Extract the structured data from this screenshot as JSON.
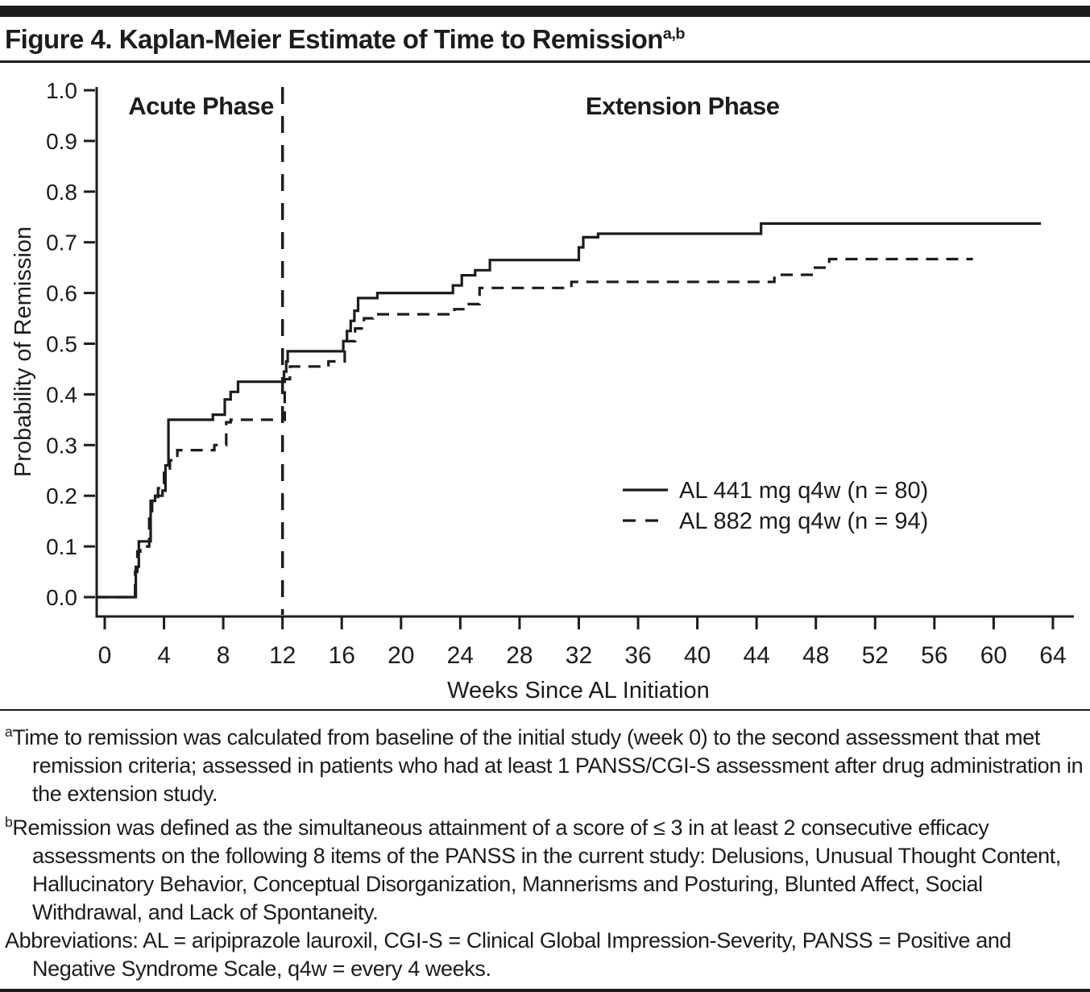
{
  "page": {
    "title": "Figure 4. Kaplan-Meier Estimate of Time to Remission",
    "title_superscript": "a,b"
  },
  "chart_data": {
    "type": "line",
    "subtype": "kaplan-meier-step",
    "title": "Figure 4. Kaplan-Meier Estimate of Time to Remission",
    "xlabel": "Weeks Since AL Initiation",
    "ylabel": "Probability of Remission",
    "xlim": [
      0,
      64
    ],
    "ylim": [
      0.0,
      1.0
    ],
    "x_ticks": [
      0,
      4,
      8,
      12,
      16,
      20,
      24,
      28,
      32,
      36,
      40,
      44,
      48,
      52,
      56,
      60,
      64
    ],
    "y_ticks": [
      0.0,
      0.1,
      0.2,
      0.3,
      0.4,
      0.5,
      0.6,
      0.7,
      0.8,
      0.9,
      1.0
    ],
    "grid": false,
    "line_color": "#1c1c1c",
    "phase_divider_week": 12,
    "phase_labels": [
      {
        "text": "Acute Phase",
        "week": 6.5,
        "prob": 0.952
      },
      {
        "text": "Extension Phase",
        "week": 39,
        "prob": 0.952
      }
    ],
    "legend": {
      "position": "center-right",
      "entries": [
        {
          "label": "AL 441 mg q4w (n = 80)",
          "line": "solid"
        },
        {
          "label": "AL 882 mg q4w (n = 94)",
          "line": "dashed"
        }
      ]
    },
    "series": [
      {
        "name": "AL 441 mg q4w (n = 80)",
        "line": "solid",
        "end_week": 63.2,
        "points": [
          [
            0,
            0.0
          ],
          [
            2.1,
            0.06
          ],
          [
            2.3,
            0.11
          ],
          [
            3.1,
            0.19
          ],
          [
            3.4,
            0.2
          ],
          [
            3.9,
            0.21
          ],
          [
            4.1,
            0.26
          ],
          [
            4.3,
            0.35
          ],
          [
            7.3,
            0.36
          ],
          [
            8.1,
            0.39
          ],
          [
            8.5,
            0.405
          ],
          [
            9.0,
            0.425
          ],
          [
            12.1,
            0.445
          ],
          [
            12.25,
            0.465
          ],
          [
            12.35,
            0.485
          ],
          [
            16.1,
            0.505
          ],
          [
            16.35,
            0.525
          ],
          [
            16.6,
            0.545
          ],
          [
            16.85,
            0.565
          ],
          [
            17.1,
            0.59
          ],
          [
            18.4,
            0.6
          ],
          [
            23.5,
            0.615
          ],
          [
            24.1,
            0.635
          ],
          [
            25.0,
            0.645
          ],
          [
            26.0,
            0.665
          ],
          [
            32.0,
            0.69
          ],
          [
            32.3,
            0.71
          ],
          [
            33.3,
            0.717
          ],
          [
            44.3,
            0.737
          ]
        ]
      },
      {
        "name": "AL 882 mg q4w (n = 94)",
        "line": "dashed",
        "end_week": 58.6,
        "points": [
          [
            0,
            0.0
          ],
          [
            2.05,
            0.05
          ],
          [
            2.2,
            0.09
          ],
          [
            2.4,
            0.1
          ],
          [
            3.0,
            0.155
          ],
          [
            3.2,
            0.19
          ],
          [
            3.6,
            0.215
          ],
          [
            4.0,
            0.245
          ],
          [
            4.4,
            0.27
          ],
          [
            4.9,
            0.29
          ],
          [
            7.4,
            0.3
          ],
          [
            8.2,
            0.345
          ],
          [
            8.5,
            0.35
          ],
          [
            12.15,
            0.43
          ],
          [
            12.5,
            0.455
          ],
          [
            15.1,
            0.465
          ],
          [
            16.2,
            0.505
          ],
          [
            16.9,
            0.53
          ],
          [
            17.5,
            0.55
          ],
          [
            18.1,
            0.558
          ],
          [
            23.6,
            0.568
          ],
          [
            24.3,
            0.578
          ],
          [
            25.3,
            0.61
          ],
          [
            31.5,
            0.622
          ],
          [
            45.2,
            0.636
          ],
          [
            47.8,
            0.65
          ],
          [
            48.9,
            0.667
          ]
        ]
      }
    ]
  },
  "footnotes": [
    {
      "sup": "a",
      "text": "Time to remission was calculated from baseline of the initial study (week 0) to the second assessment that met remission criteria; assessed in patients who had at least 1 PANSS/CGI-S assessment after drug administration in the extension study."
    },
    {
      "sup": "b",
      "text": "Remission was defined as the simultaneous attainment of a score of ≤ 3 in at least 2 consecutive efficacy assessments on the following 8 items of the PANSS in the current study: Delusions, Unusual Thought Content, Hallucinatory Behavior, Conceptual Disorganization, Mannerisms and Posturing, Blunted Affect, Social Withdrawal, and Lack of Spontaneity."
    },
    {
      "sup": "",
      "text": "Abbreviations: AL = aripiprazole lauroxil, CGI-S = Clinical Global Impression-Severity, PANSS = Positive and Negative Syndrome Scale, q4w = every 4 weeks."
    }
  ]
}
